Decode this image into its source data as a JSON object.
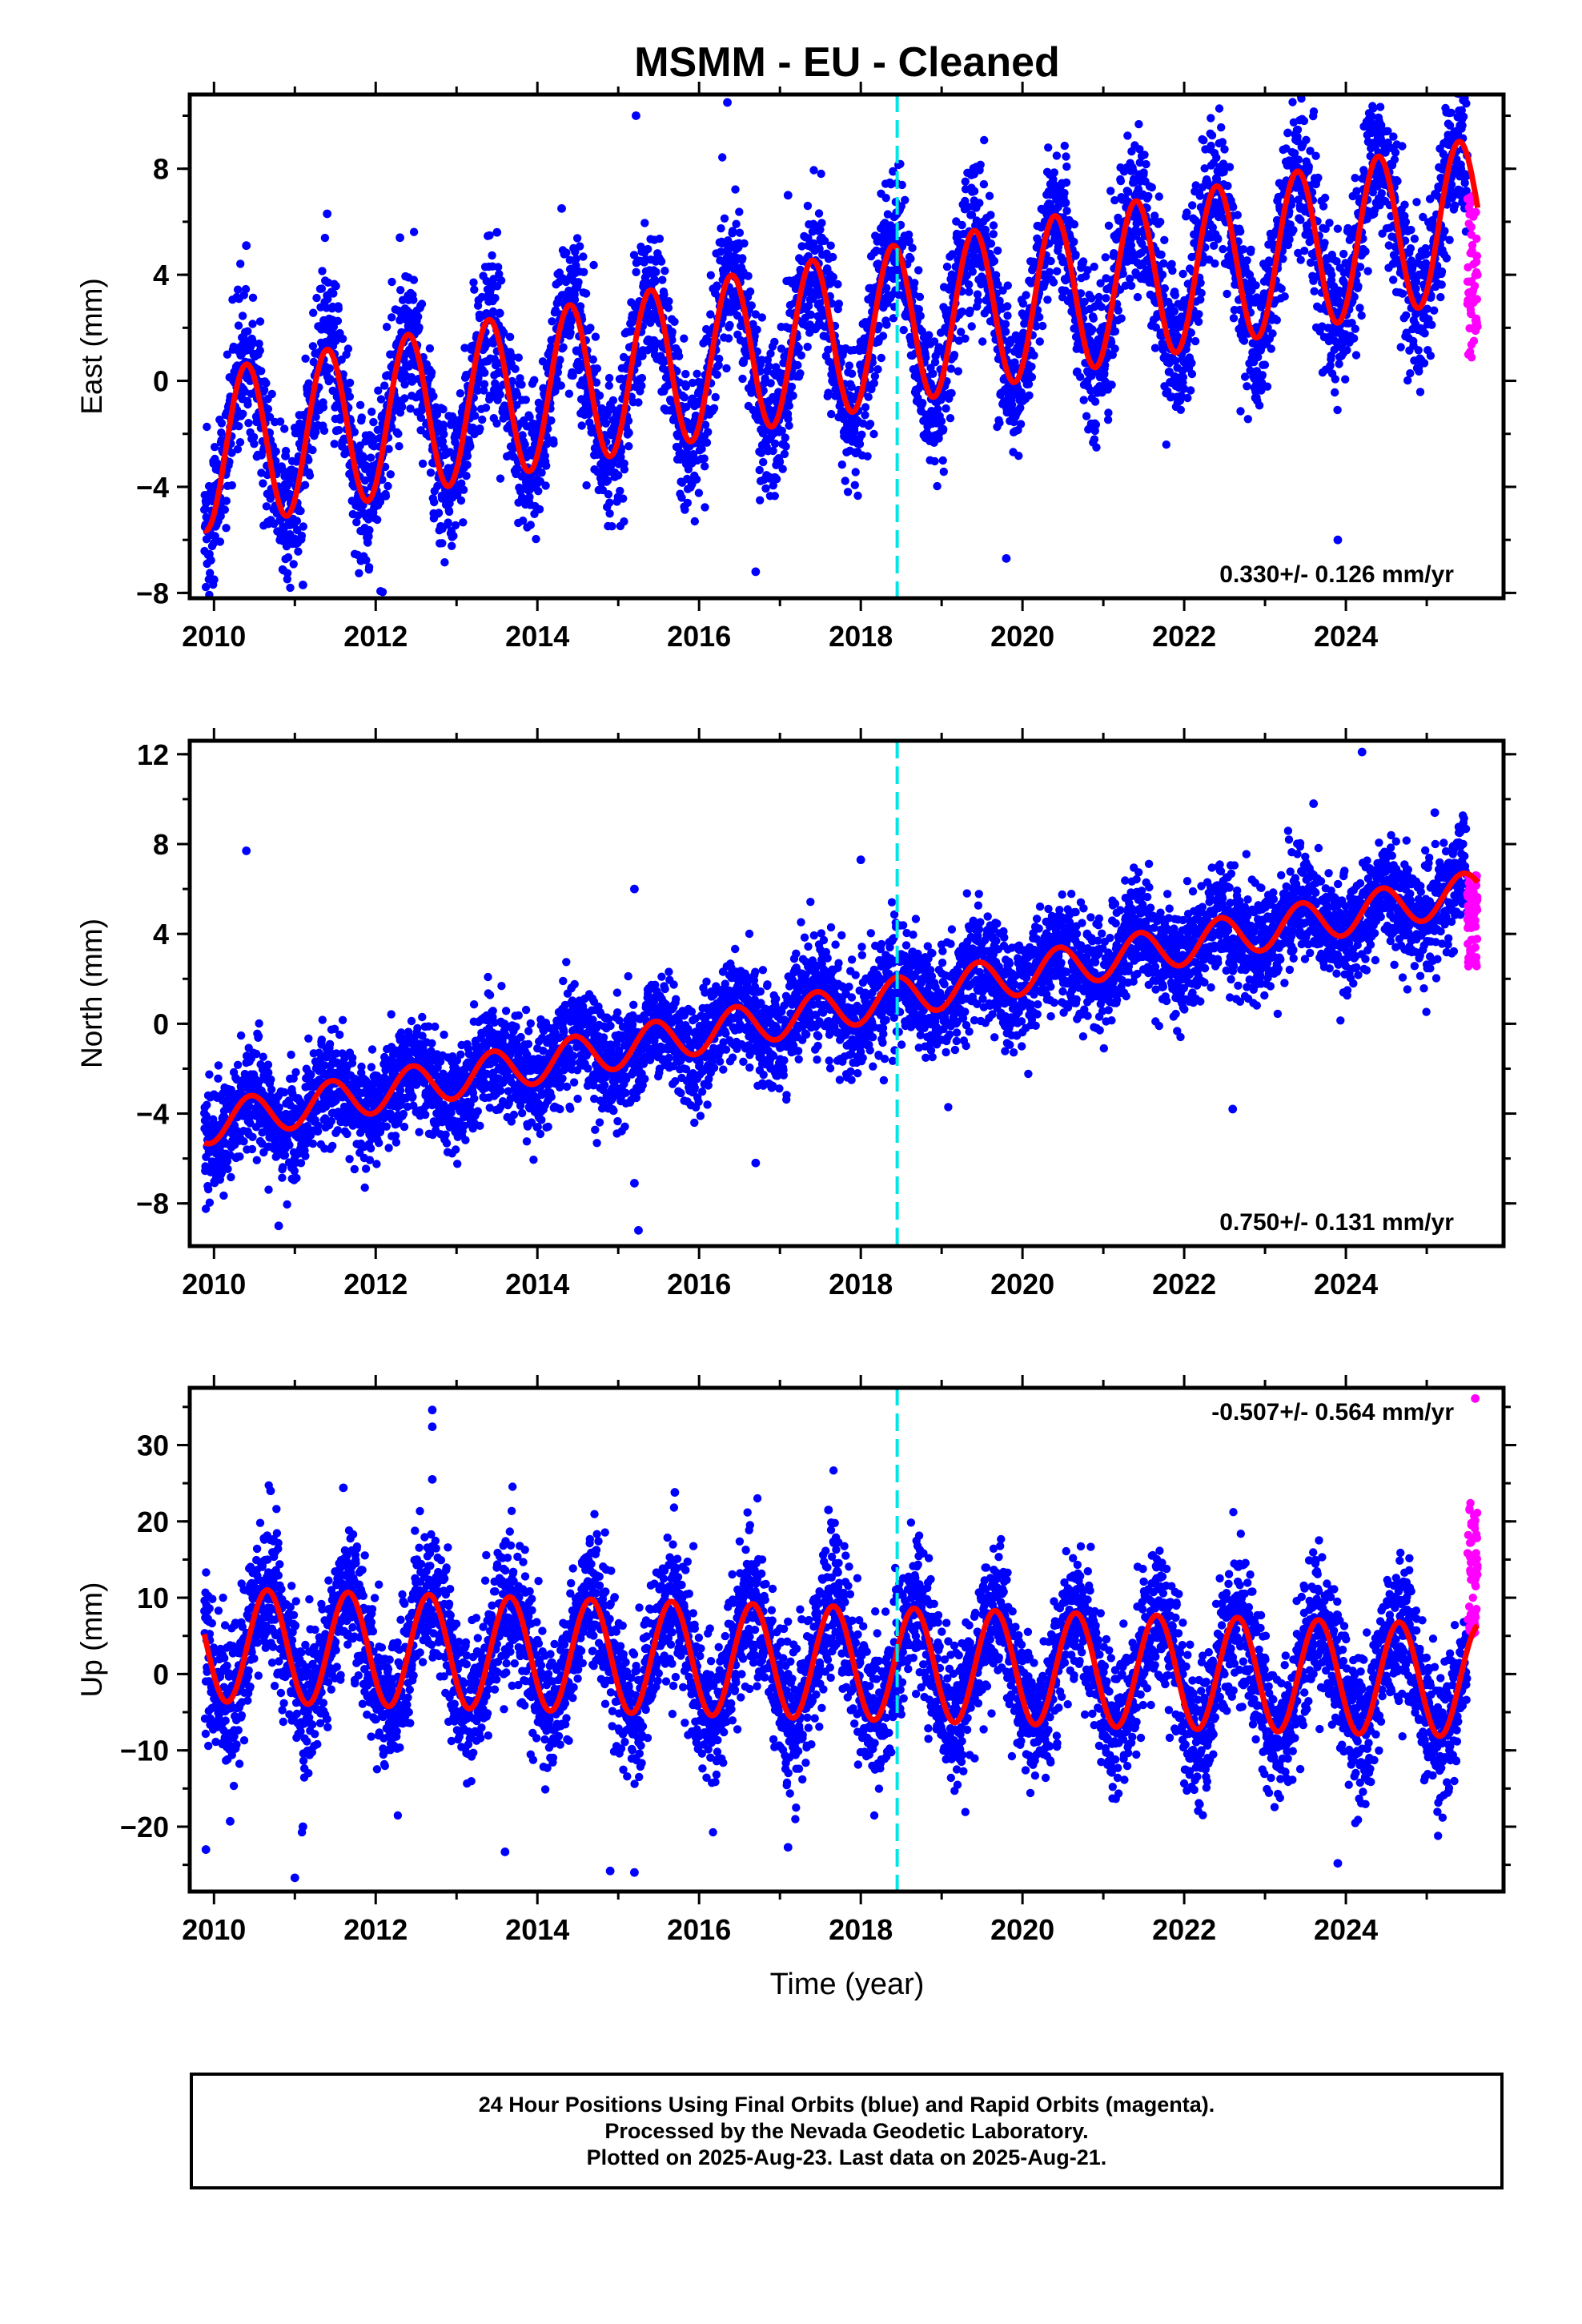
{
  "title": "MSMM  - EU - Cleaned",
  "xlabel": "Time (year)",
  "colors": {
    "final": "#0000ff",
    "rapid": "#ff00ff",
    "model": "#ff0000",
    "equipment_change": "#00e5e5"
  },
  "footer": {
    "line1": "24 Hour Positions Using Final Orbits (blue) and Rapid Orbits (magenta).",
    "line2": "Processed by the Nevada Geodetic Laboratory.",
    "line3": "Plotted on 2025-Aug-23. Last data on 2025-Aug-21."
  },
  "chart_data": [
    {
      "type": "scatter",
      "component": "East",
      "ylabel": "East (mm)",
      "xlim": [
        2009.7,
        2025.95
      ],
      "ylim": [
        -8.2,
        10.8
      ],
      "xticks": [
        2010,
        2012,
        2014,
        2016,
        2018,
        2020,
        2022,
        2024
      ],
      "yticks": [
        -8,
        -4,
        0,
        4,
        8
      ],
      "annotation": "0.330+/- 0.126 mm/yr",
      "annotation_position": "bottom-right",
      "equipment_change_x": 2018.45,
      "model": {
        "offset_at_2010": -2.6,
        "rate_mm_per_yr": 0.56,
        "annual_amplitude": 3.0,
        "annual_peak_frac": 0.4
      },
      "series": [
        {
          "name": "Final Orbits",
          "x_range": [
            2009.88,
            2025.5
          ],
          "scatter_sd": 1.4,
          "outliers": [
            [
              2015.22,
              10.0
            ],
            [
              2016.35,
              10.5
            ],
            [
              2010.4,
              5.1
            ],
            [
              2011.4,
              6.3
            ],
            [
              2012.3,
              5.4
            ],
            [
              2013.5,
              5.6
            ],
            [
              2014.3,
              6.5
            ],
            [
              2018.4,
              7.9
            ],
            [
              2019.4,
              7.8
            ],
            [
              2024.4,
              9.4
            ],
            [
              2017.1,
              7.0
            ],
            [
              2010.0,
              -7.5
            ],
            [
              2011.1,
              -7.7
            ],
            [
              2016.7,
              -7.2
            ],
            [
              2019.8,
              -6.7
            ],
            [
              2023.9,
              -6.0
            ],
            [
              2025.5,
              8.5
            ]
          ]
        },
        {
          "name": "Rapid Orbits",
          "x_range": [
            2025.5,
            2025.63
          ],
          "y_range": [
            0.8,
            7.1
          ]
        }
      ]
    },
    {
      "type": "scatter",
      "component": "North",
      "ylabel": "North (mm)",
      "xlim": [
        2009.7,
        2025.95
      ],
      "ylim": [
        -9.9,
        12.6
      ],
      "xticks": [
        2010,
        2012,
        2014,
        2016,
        2018,
        2020,
        2022,
        2024
      ],
      "yticks": [
        -8,
        -4,
        0,
        4,
        8,
        12
      ],
      "annotation": "0.750+/- 0.131 mm/yr",
      "annotation_position": "bottom-right",
      "equipment_change_x": 2018.45,
      "model": {
        "offset_at_2010": -4.4,
        "rate_mm_per_yr": 0.66,
        "annual_amplitude": 0.9,
        "annual_peak_frac": 0.45
      },
      "series": [
        {
          "name": "Final Orbits",
          "x_range": [
            2009.88,
            2025.5
          ],
          "scatter_sd": 1.2,
          "outliers": [
            [
              2010.4,
              7.7
            ],
            [
              2015.2,
              6.0
            ],
            [
              2018.0,
              7.3
            ],
            [
              2023.6,
              9.8
            ],
            [
              2024.2,
              12.1
            ],
            [
              2025.1,
              9.4
            ],
            [
              2015.25,
              -9.2
            ],
            [
              2015.2,
              -7.1
            ],
            [
              2010.8,
              -9.0
            ],
            [
              2016.7,
              -6.2
            ],
            [
              2022.6,
              -3.8
            ]
          ]
        },
        {
          "name": "Rapid Orbits",
          "x_range": [
            2025.5,
            2025.63
          ],
          "y_range": [
            2.5,
            6.7
          ]
        }
      ]
    },
    {
      "type": "scatter",
      "component": "Up",
      "ylabel": "Up (mm)",
      "xlim": [
        2009.7,
        2025.95
      ],
      "ylim": [
        -28.5,
        37.5
      ],
      "xticks": [
        2010,
        2012,
        2014,
        2016,
        2018,
        2020,
        2022,
        2024
      ],
      "yticks": [
        -20,
        -10,
        0,
        10,
        20,
        30
      ],
      "annotation": "-0.507+/- 0.564 mm/yr",
      "annotation_position": "top-right",
      "equipment_change_x": 2018.45,
      "model": {
        "offset_at_2010": 3.8,
        "rate_mm_per_yr": -0.3,
        "annual_amplitude": 7.4,
        "annual_peak_frac": 0.66
      },
      "series": [
        {
          "name": "Final Orbits",
          "x_range": [
            2009.88,
            2025.5
          ],
          "scatter_sd": 4.6,
          "outliers": [
            [
              2012.7,
              34.6
            ],
            [
              2012.7,
              32.4
            ],
            [
              2012.7,
              25.5
            ],
            [
              2011.6,
              24.4
            ],
            [
              2015.7,
              23.8
            ],
            [
              2017.6,
              21.5
            ],
            [
              2010.7,
              24.0
            ],
            [
              2011.0,
              -26.7
            ],
            [
              2014.9,
              -25.8
            ],
            [
              2015.2,
              -26.0
            ],
            [
              2023.9,
              -24.8
            ],
            [
              2009.9,
              -23.0
            ],
            [
              2013.6,
              -23.3
            ],
            [
              2017.1,
              -22.7
            ],
            [
              2011.1,
              -20.0
            ],
            [
              2010.2,
              -19.3
            ]
          ]
        },
        {
          "name": "Rapid Orbits",
          "x_range": [
            2025.5,
            2025.63
          ],
          "y_range": [
            5.0,
            22.5
          ],
          "outliers": [
            [
              2025.6,
              36.1
            ]
          ]
        }
      ]
    }
  ]
}
